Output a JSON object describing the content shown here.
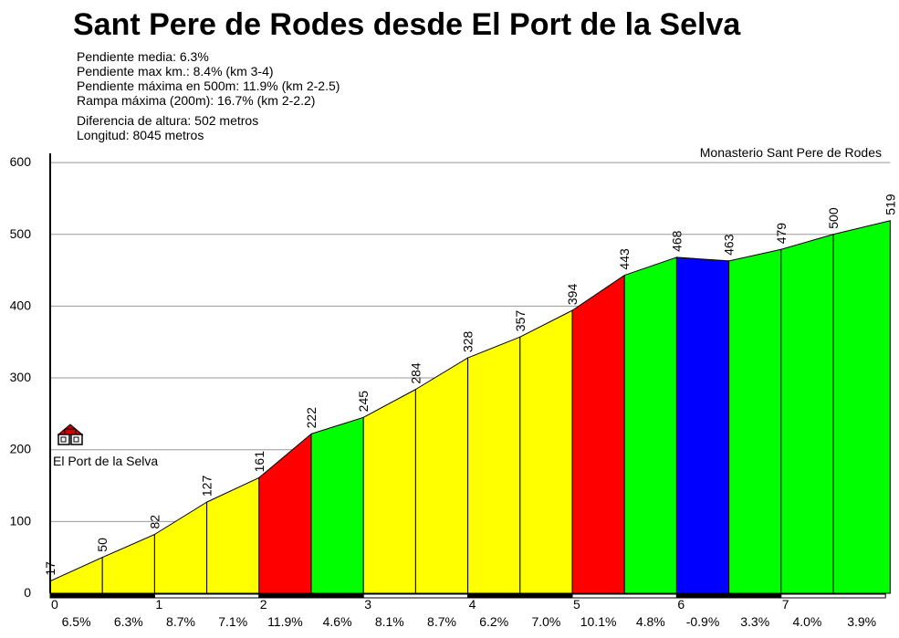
{
  "title": "Sant Pere de Rodes desde El Port de la Selva",
  "stats": {
    "pendiente_media": "Pendiente media: 6.3%",
    "pendiente_max_km": "Pendiente max km.: 8.4% (km 3-4)",
    "pendiente_max_500": "Pendiente máxima en 500m: 11.9% (km 2-2.5)",
    "rampa_max": "Rampa máxima (200m): 16.7% (km 2-2.2)",
    "diferencia": "Diferencia de altura: 502 metros",
    "longitud": "Longitud: 8045 metros"
  },
  "colors": {
    "easy": "#ffff00",
    "moderate": "#00ff00",
    "hard": "#ff0000",
    "descent": "#0000ff"
  },
  "chart_data": {
    "type": "area",
    "title": "Sant Pere de Rodes desde El Port de la Selva",
    "start_label": "El Port de la Selva",
    "end_label": "Monasterio Sant Pere de Rodes",
    "ylim": [
      0,
      600
    ],
    "yticks": [
      "0",
      "100",
      "200",
      "300",
      "400",
      "500",
      "600"
    ],
    "xlim": [
      0,
      8.045
    ],
    "xticks": [
      "0",
      "1",
      "2",
      "3",
      "4",
      "5",
      "6",
      "7"
    ],
    "grid": "horizontal",
    "distance_km": [
      0,
      0.5,
      1,
      1.5,
      2,
      2.5,
      3,
      3.5,
      4,
      4.5,
      5,
      5.5,
      6,
      6.5,
      7,
      7.5,
      8.045
    ],
    "elevation_m": [
      17,
      50,
      82,
      127,
      161,
      222,
      245,
      284,
      328,
      357,
      394,
      443,
      468,
      463,
      479,
      500,
      519
    ],
    "elevation_labels": [
      "17",
      "50",
      "82",
      "127",
      "161",
      "222",
      "245",
      "284",
      "328",
      "357",
      "394",
      "443",
      "468",
      "463",
      "479",
      "500",
      "519"
    ],
    "gradients": [
      "6.5%",
      "6.3%",
      "8.7%",
      "7.1%",
      "11.9%",
      "4.6%",
      "8.1%",
      "8.7%",
      "6.2%",
      "7.0%",
      "10.1%",
      "4.8%",
      "-0.9%",
      "3.3%",
      "4.0%",
      "3.9%"
    ],
    "segment_colors": [
      "easy",
      "easy",
      "easy",
      "easy",
      "hard",
      "moderate",
      "easy",
      "easy",
      "easy",
      "easy",
      "hard",
      "moderate",
      "descent",
      "moderate",
      "moderate",
      "moderate"
    ]
  }
}
